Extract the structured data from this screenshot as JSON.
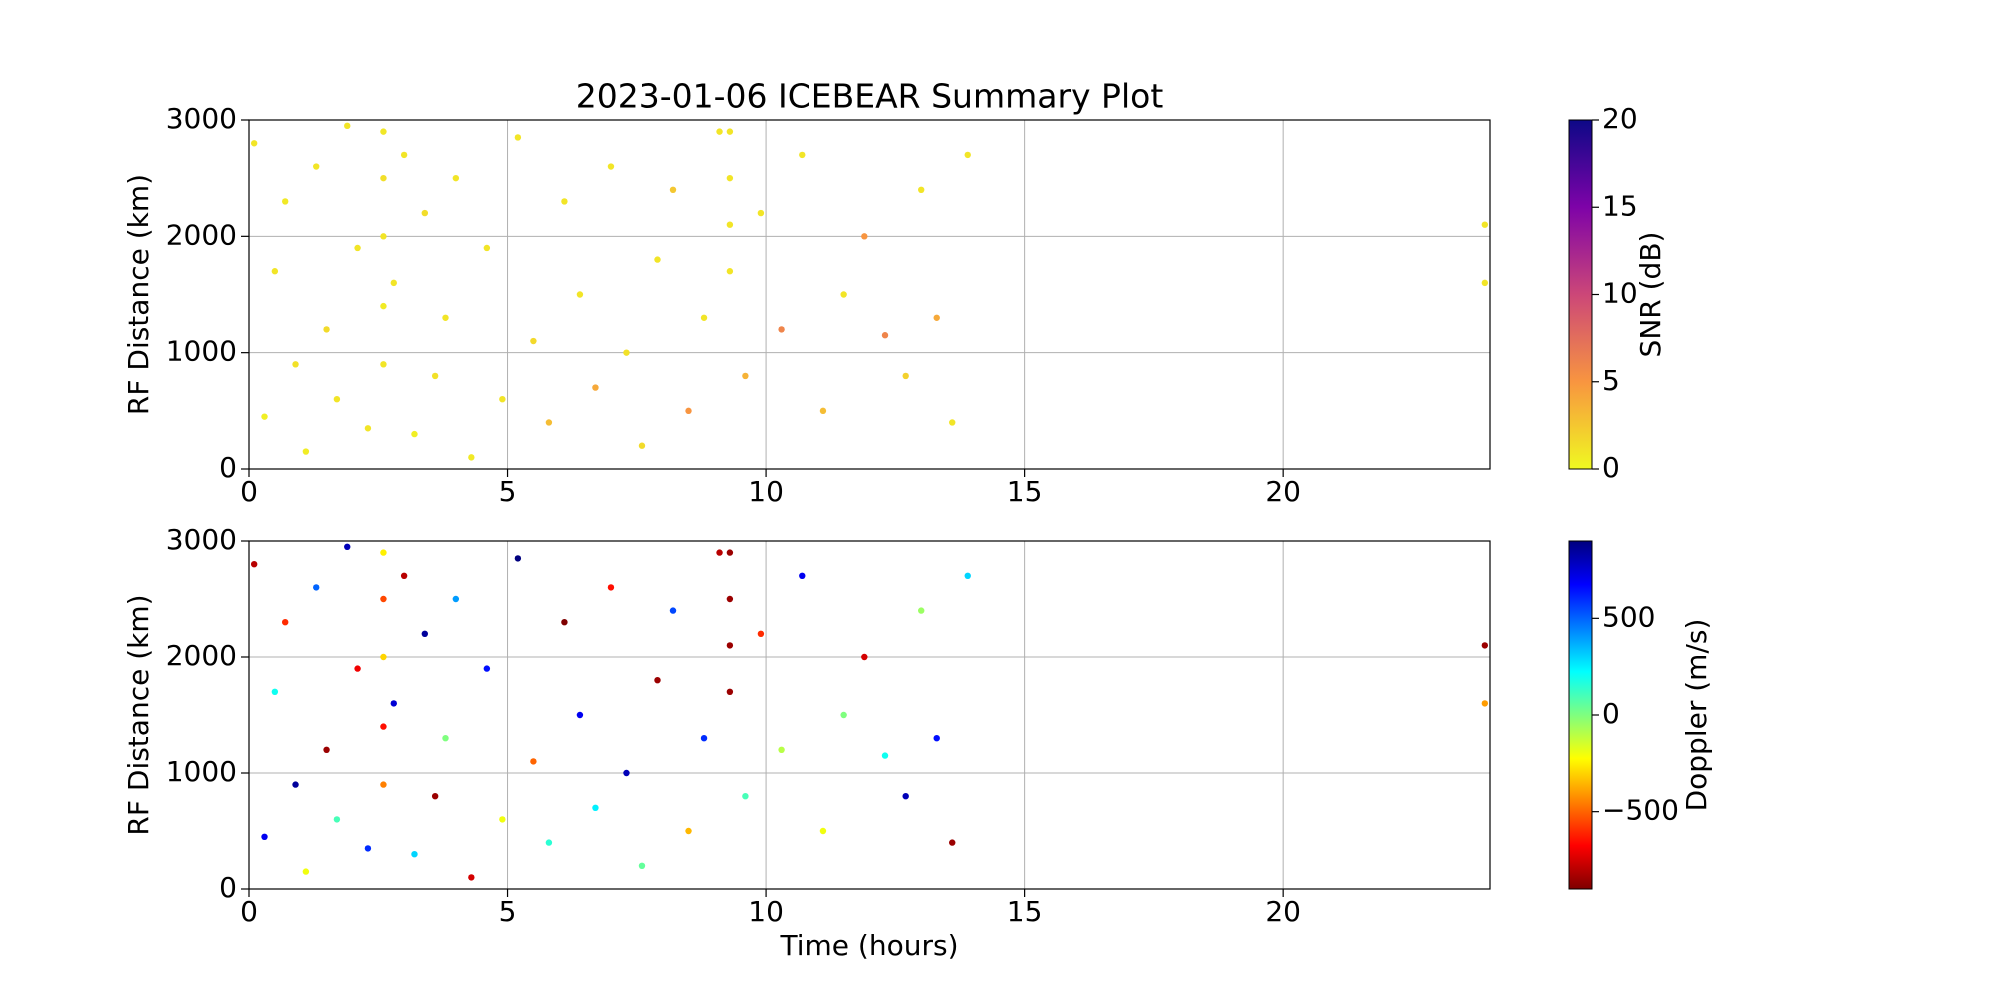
{
  "chart_data": [
    {
      "type": "scatter",
      "title": "2023-01-06 ICEBEAR Summary Plot",
      "ylabel": "RF Distance (km)",
      "x": [
        0.1,
        0.3,
        0.5,
        0.7,
        0.9,
        1.1,
        1.3,
        1.5,
        1.7,
        1.9,
        2.1,
        2.3,
        2.6,
        2.6,
        2.6,
        2.6,
        2.6,
        2.8,
        3.0,
        3.2,
        3.4,
        3.6,
        3.8,
        4.0,
        4.3,
        4.6,
        4.9,
        5.2,
        5.5,
        5.8,
        6.1,
        6.4,
        6.7,
        7.0,
        7.3,
        7.6,
        7.9,
        8.2,
        8.5,
        8.8,
        9.1,
        9.3,
        9.3,
        9.3,
        9.3,
        9.6,
        9.9,
        10.3,
        10.7,
        11.1,
        11.5,
        11.9,
        12.3,
        12.7,
        13.0,
        13.3,
        13.6,
        13.9,
        23.9,
        23.9
      ],
      "values": [
        2800,
        450,
        1700,
        2300,
        900,
        150,
        2600,
        1200,
        600,
        2950,
        1900,
        350,
        900,
        1400,
        2000,
        2500,
        2900,
        1600,
        2700,
        300,
        2200,
        800,
        1300,
        2500,
        100,
        1900,
        600,
        2850,
        1100,
        400,
        2300,
        1500,
        700,
        2600,
        1000,
        200,
        1800,
        2400,
        500,
        1300,
        2900,
        1700,
        2100,
        2500,
        2900,
        800,
        2200,
        1200,
        2700,
        500,
        1500,
        2000,
        1150,
        800,
        2400,
        1300,
        400,
        2700,
        2100,
        1600
      ],
      "color_values": [
        1,
        0.5,
        1,
        0.8,
        1.2,
        0.6,
        1,
        1.5,
        1,
        1,
        1,
        1,
        1,
        0.7,
        1,
        1.3,
        0.9,
        1,
        1,
        0.5,
        1.4,
        1.2,
        1,
        1,
        0.8,
        1,
        1,
        1,
        1.6,
        3,
        1,
        1,
        4,
        1,
        1.2,
        1.5,
        1,
        2.5,
        5,
        1,
        1,
        1,
        1,
        1,
        1,
        3.5,
        1,
        6,
        1,
        3,
        1,
        5,
        6,
        2,
        1,
        4,
        1,
        1,
        1,
        1
      ],
      "xlim": [
        0,
        24
      ],
      "ylim": [
        0,
        3000
      ],
      "xticks": [
        0,
        5,
        10,
        15,
        20
      ],
      "yticks": [
        0,
        1000,
        2000,
        3000
      ],
      "grid": true,
      "clim": [
        0,
        20
      ],
      "cticks": [
        0,
        5,
        10,
        15,
        20
      ],
      "clabel": "SNR (dB)",
      "colormap": [
        "#f0f921",
        "#f89540",
        "#cc4778",
        "#7e03a8",
        "#0d0887"
      ]
    },
    {
      "type": "scatter",
      "ylabel": "RF Distance (km)",
      "xlabel": "Time (hours)",
      "x": [
        0.1,
        0.3,
        0.5,
        0.7,
        0.9,
        1.1,
        1.3,
        1.5,
        1.7,
        1.9,
        2.1,
        2.3,
        2.6,
        2.6,
        2.6,
        2.6,
        2.6,
        2.8,
        3.0,
        3.2,
        3.4,
        3.6,
        3.8,
        4.0,
        4.3,
        4.6,
        4.9,
        5.2,
        5.5,
        5.8,
        6.1,
        6.4,
        6.7,
        7.0,
        7.3,
        7.6,
        7.9,
        8.2,
        8.5,
        8.8,
        9.1,
        9.3,
        9.3,
        9.3,
        9.3,
        9.6,
        9.9,
        10.3,
        10.7,
        11.1,
        11.5,
        11.9,
        12.3,
        12.7,
        13.0,
        13.3,
        13.6,
        13.9,
        23.9,
        23.9
      ],
      "values": [
        2800,
        450,
        1700,
        2300,
        900,
        150,
        2600,
        1200,
        600,
        2950,
        1900,
        350,
        900,
        1400,
        2000,
        2500,
        2900,
        1600,
        2700,
        300,
        2200,
        800,
        1300,
        2500,
        100,
        1900,
        600,
        2850,
        1100,
        400,
        2300,
        1500,
        700,
        2600,
        1000,
        200,
        1800,
        2400,
        500,
        1300,
        2900,
        1700,
        2100,
        2500,
        2900,
        800,
        2200,
        1200,
        2700,
        500,
        1500,
        2000,
        1150,
        800,
        2400,
        1300,
        400,
        2700,
        2100,
        1600
      ],
      "color_values": [
        -800,
        700,
        200,
        -600,
        850,
        -200,
        500,
        -850,
        100,
        800,
        -700,
        600,
        -450,
        -650,
        -300,
        -550,
        -250,
        750,
        -800,
        300,
        850,
        -850,
        0,
        400,
        -750,
        650,
        -200,
        900,
        -500,
        150,
        -900,
        700,
        250,
        -650,
        800,
        50,
        -850,
        550,
        -350,
        600,
        -800,
        -850,
        -850,
        -850,
        -850,
        100,
        -600,
        -100,
        700,
        -200,
        0,
        -750,
        200,
        800,
        -50,
        650,
        -850,
        300,
        -850,
        -400
      ],
      "xlim": [
        0,
        24
      ],
      "ylim": [
        0,
        3000
      ],
      "xticks": [
        0,
        5,
        10,
        15,
        20
      ],
      "yticks": [
        0,
        1000,
        2000,
        3000
      ],
      "grid": true,
      "clim": [
        -900,
        900
      ],
      "cticks": [
        {
          "value": -500,
          "label": "−500"
        },
        0,
        500
      ],
      "clabel": "Doppler (m/s)",
      "colormap": [
        "#7f0000",
        "#ff0000",
        "#ff8000",
        "#ffff00",
        "#7fff7f",
        "#00ffff",
        "#0080ff",
        "#0000ff",
        "#00007f"
      ]
    }
  ]
}
